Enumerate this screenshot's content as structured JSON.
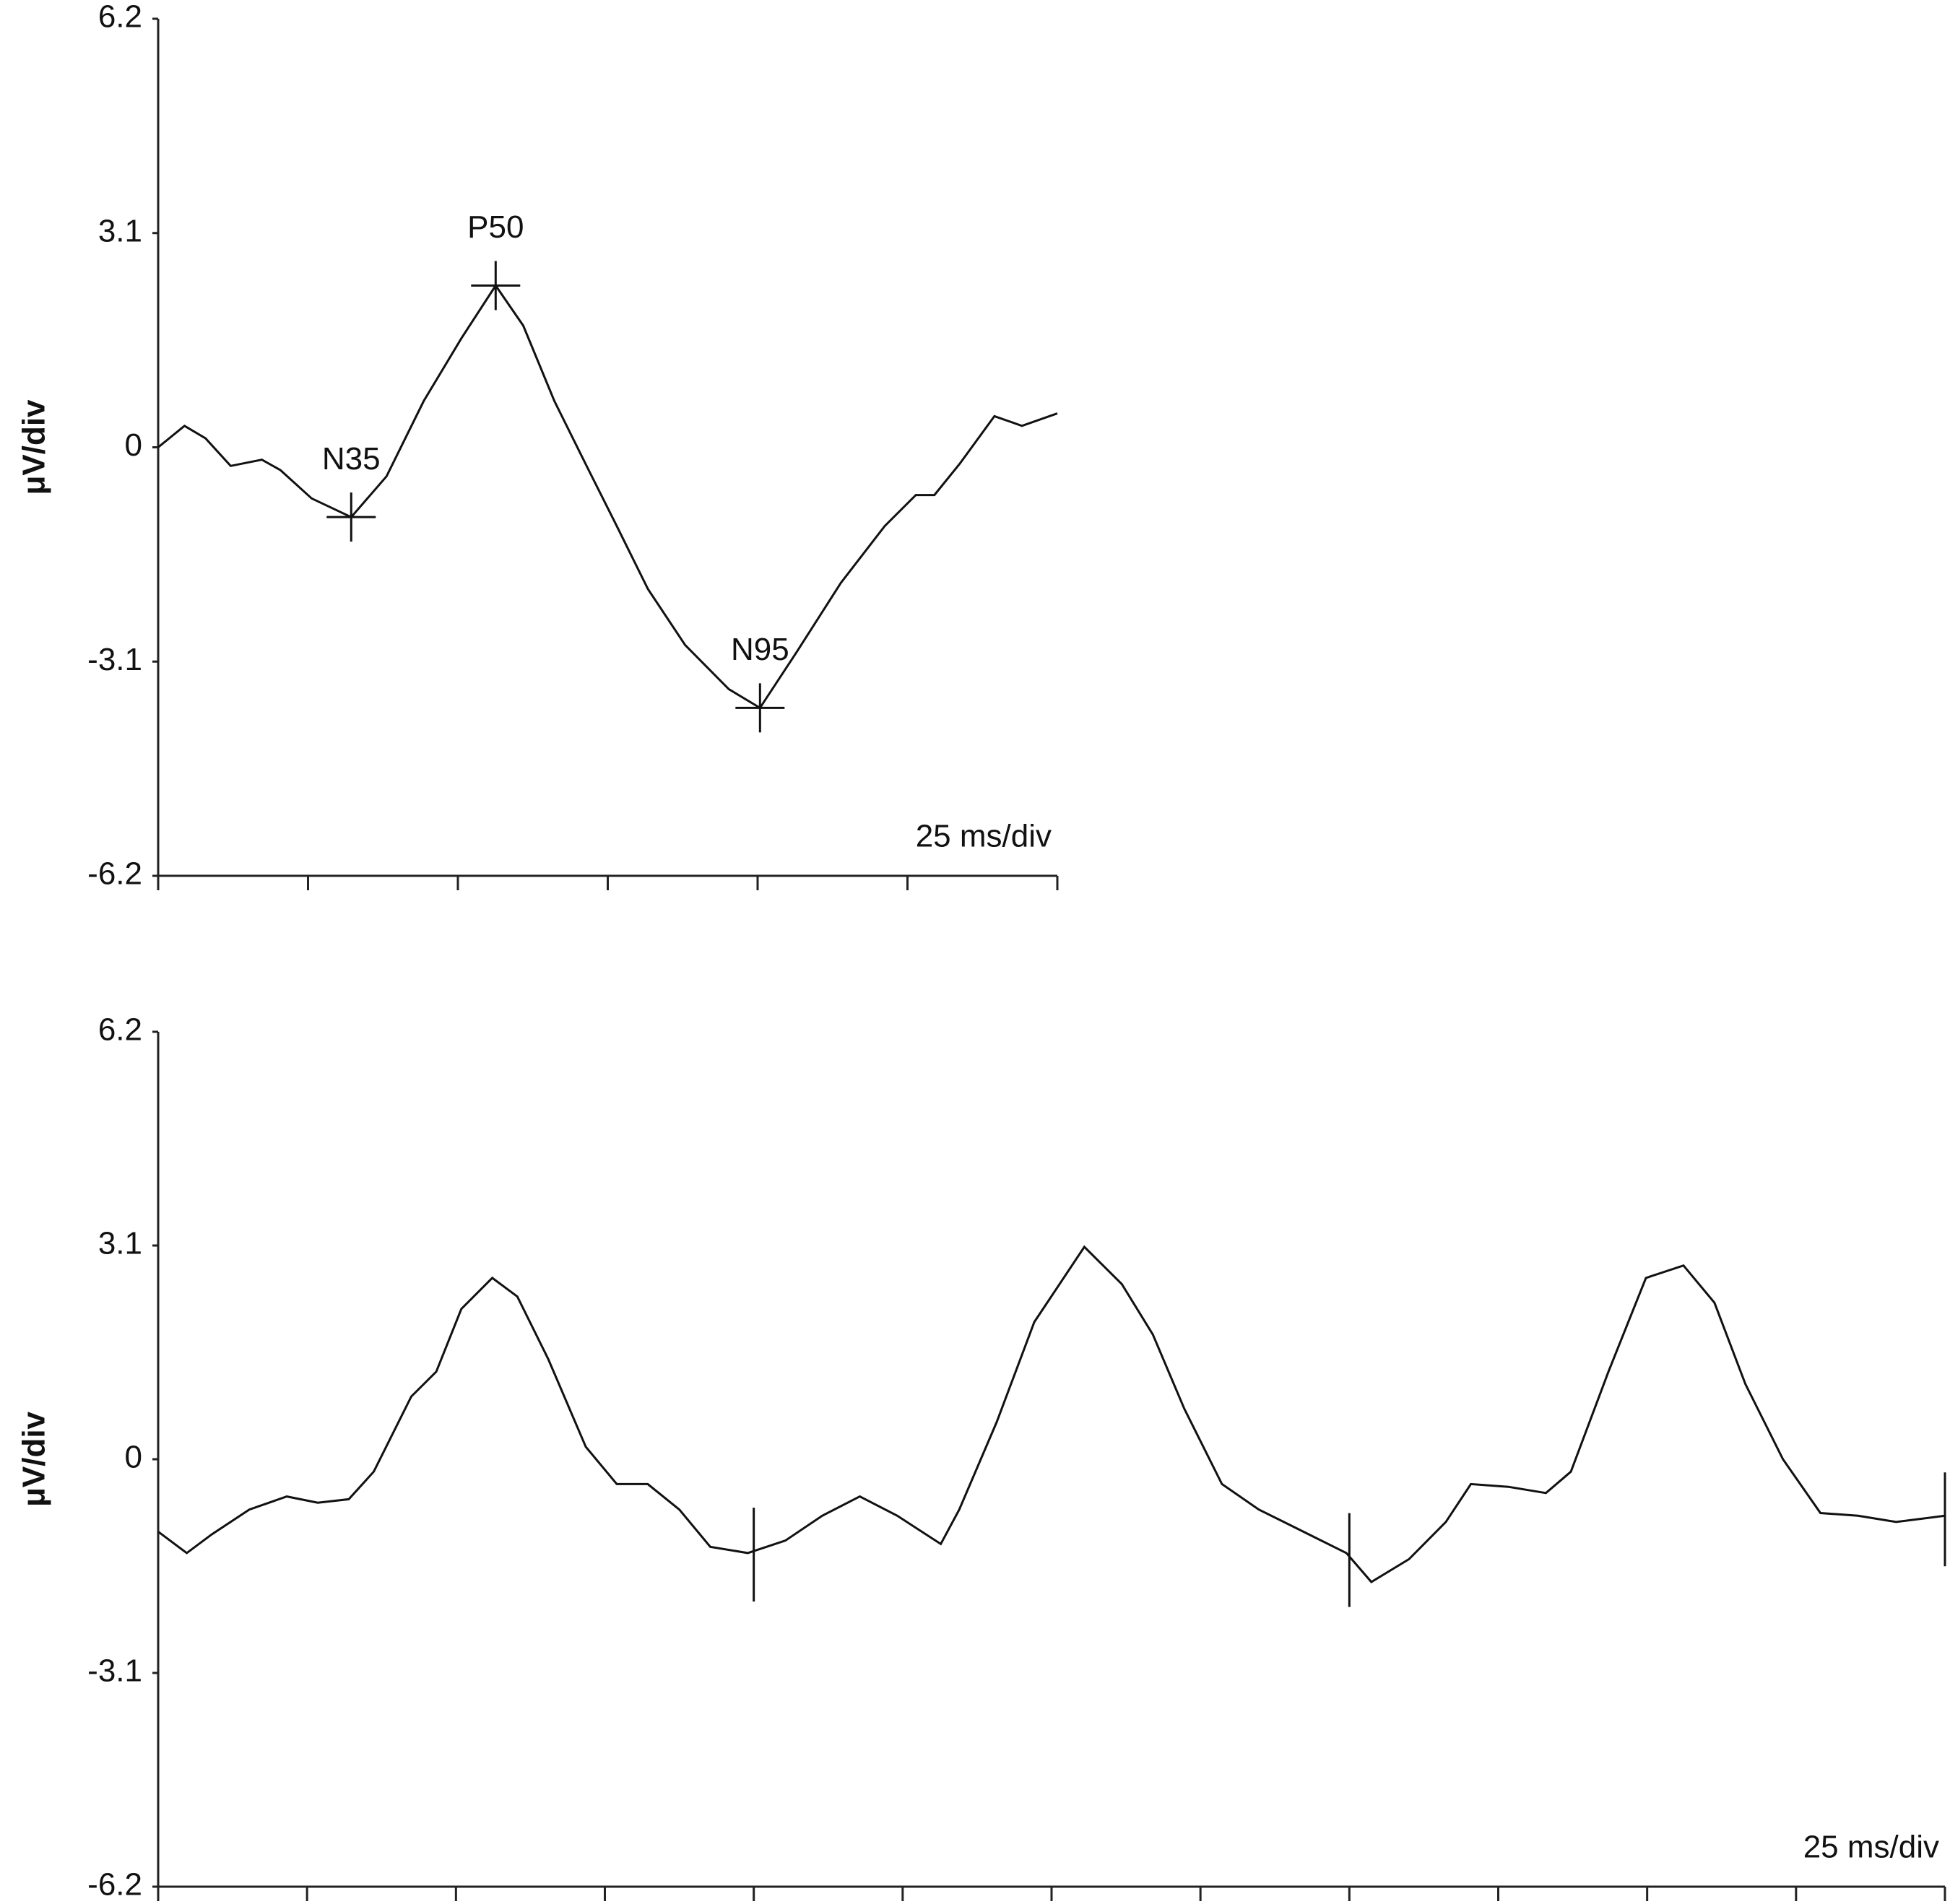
{
  "chart_data": [
    {
      "type": "line",
      "ylabel": "μV/div",
      "annotation": "25 ms/div",
      "xlim": [
        0,
        150
      ],
      "xticks": [
        0,
        25,
        50,
        75,
        100,
        125,
        150
      ],
      "ylim": [
        -6.2,
        6.2
      ],
      "yticks": [
        6.2,
        3.1,
        0,
        -3.1,
        -6.2
      ],
      "color": "#111111",
      "x": [
        0,
        4.4,
        7.9,
        12.1,
        17.3,
        20.4,
        25.6,
        32.2,
        38.1,
        44.3,
        50.6,
        56.3,
        60.9,
        66.1,
        71.3,
        76.5,
        81.7,
        87.9,
        95.2,
        100.4,
        106.6,
        113.9,
        121.2,
        126.4,
        129.5,
        133.7,
        139.5,
        144.1,
        150
      ],
      "values": [
        0,
        0.31,
        0.13,
        -0.27,
        -0.18,
        -0.33,
        -0.74,
        -1.01,
        -0.42,
        0.67,
        1.58,
        2.34,
        1.76,
        0.67,
        -0.24,
        -1.14,
        -2.05,
        -2.86,
        -3.5,
        -3.77,
        -2.95,
        -1.96,
        -1.14,
        -0.69,
        -0.69,
        -0.24,
        0.45,
        0.31,
        0.49
      ],
      "peaks": [
        {
          "label": "N35",
          "x": 32.2,
          "y": -1.01
        },
        {
          "label": "P50",
          "x": 56.3,
          "y": 2.34
        },
        {
          "label": "N95",
          "x": 100.4,
          "y": -3.77
        }
      ]
    },
    {
      "type": "line",
      "ylabel": "μV/div",
      "annotation": "25 ms/div",
      "xlim": [
        0,
        300
      ],
      "xticks": [
        0,
        25,
        50,
        75,
        100,
        125,
        150,
        175,
        200,
        225,
        250,
        275,
        300
      ],
      "ylim": [
        -6.2,
        6.2
      ],
      "yticks": [
        6.2,
        3.1,
        0,
        -3.1,
        -6.2
      ],
      "color": "#111111",
      "x": [
        0,
        4.8,
        9,
        15.3,
        21.6,
        26.8,
        32,
        36.2,
        42.5,
        46.7,
        50.9,
        56.1,
        60.3,
        65.5,
        71.8,
        77,
        82.2,
        87.5,
        92.7,
        99,
        105.3,
        111.5,
        117.8,
        124.1,
        131.4,
        134.5,
        140.8,
        147.1,
        155.5,
        161.8,
        167,
        172.3,
        178.6,
        184.8,
        193.2,
        199.5,
        203.7,
        210,
        216.2,
        220.4,
        226.7,
        233,
        237.2,
        243.5,
        249.8,
        256.1,
        261.3,
        266.5,
        272.8,
        279.1,
        285.4,
        291.8,
        300
      ],
      "values": [
        -1.05,
        -1.36,
        -1.09,
        -0.73,
        -0.54,
        -0.63,
        -0.58,
        -0.18,
        0.91,
        1.27,
        2.18,
        2.63,
        2.36,
        1.45,
        0.18,
        -0.36,
        -0.36,
        -0.73,
        -1.27,
        -1.36,
        -1.18,
        -0.82,
        -0.54,
        -0.82,
        -1.23,
        -0.73,
        0.54,
        1.99,
        3.08,
        2.54,
        1.81,
        0.73,
        -0.36,
        -0.73,
        -1.09,
        -1.36,
        -1.78,
        -1.45,
        -0.91,
        -0.36,
        -0.4,
        -0.49,
        -0.18,
        1.27,
        2.63,
        2.81,
        2.27,
        1.09,
        0,
        -0.78,
        -0.82,
        -0.91,
        -0.82
      ],
      "cursors": [
        100,
        200,
        300
      ]
    }
  ]
}
